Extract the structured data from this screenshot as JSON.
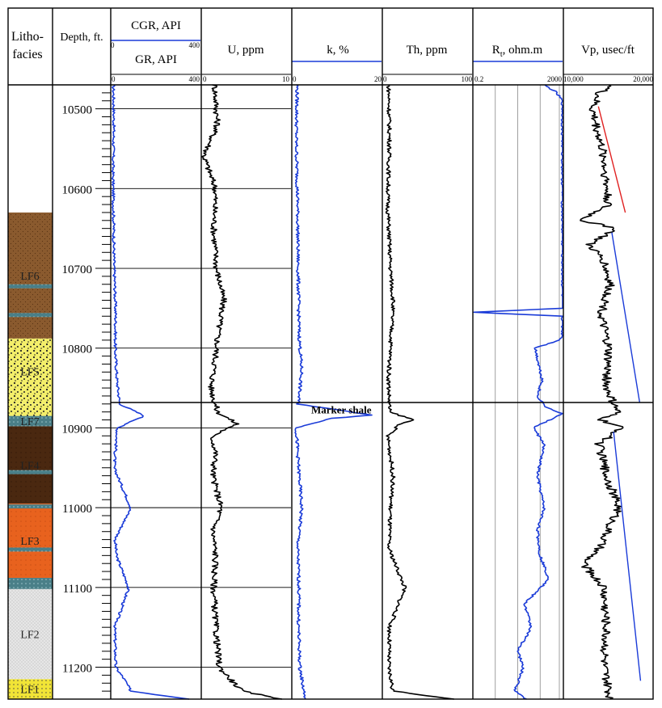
{
  "chart_data": {
    "type": "well-log",
    "depth_range": [
      10470,
      11240
    ],
    "depth_ticks": [
      10500,
      10600,
      10700,
      10800,
      10900,
      11000,
      11100,
      11200
    ],
    "headers": {
      "lithofacies": [
        "Litho-",
        "facies"
      ],
      "depth": "Depth, ft."
    },
    "tracks": [
      {
        "key": "cgr",
        "label": "CGR, API",
        "min_label": "0",
        "max_label": "400",
        "color": "#1a3bd8"
      },
      {
        "key": "gr",
        "label": "GR, API",
        "min_label": "0",
        "max_label": "400",
        "color": "#1a3bd8"
      },
      {
        "key": "u",
        "label": "U, ppm",
        "min_label": "0",
        "max_label": "10",
        "color": "#000000"
      },
      {
        "key": "k",
        "label": "k, %",
        "min_label": "0",
        "max_label": "20",
        "color": "#1a3bd8"
      },
      {
        "key": "th",
        "label": "Th, ppm",
        "min_label": "0",
        "max_label": "100",
        "color": "#000000"
      },
      {
        "key": "rt",
        "label": "Rt, ohm.m",
        "label_main": "R",
        "label_sub": "t",
        "label_rest": ", ohm.m",
        "min_label": "0.2",
        "max_label": "2000",
        "scale": "log",
        "color": "#1a3bd8"
      },
      {
        "key": "vp",
        "label": "Vp, usec/ft",
        "min_label": "10,000",
        "max_label": "20,000",
        "color": "#000000"
      }
    ],
    "lithofacies": [
      {
        "label": "",
        "top": 10470,
        "base": 10630,
        "pattern": "none"
      },
      {
        "label": "LF6",
        "top": 10630,
        "base": 10788,
        "pattern": "brown"
      },
      {
        "label": "LF5",
        "top": 10788,
        "base": 10870,
        "pattern": "sand"
      },
      {
        "label": "LF7",
        "top": 10885,
        "base": 10898,
        "pattern": "teal"
      },
      {
        "label": "LF4",
        "top": 10898,
        "base": 10995,
        "pattern": "darkbrown"
      },
      {
        "label": "LF3",
        "top": 10995,
        "base": 11088,
        "pattern": "orange"
      },
      {
        "label": "LF2",
        "top": 11102,
        "base": 11215,
        "pattern": "gray"
      },
      {
        "label": "LF1",
        "top": 11215,
        "base": 11240,
        "pattern": "yellow"
      }
    ],
    "thin_bands": [
      10722,
      10758,
      10875,
      10955,
      10998,
      11052,
      11094
    ],
    "annotations": [
      {
        "text": "Marker shale",
        "depth": 10886,
        "track": "k"
      }
    ],
    "trend_lines": [
      {
        "track": "vp",
        "color": "#e02020",
        "from": [
          10497,
          13900
        ],
        "to": [
          10630,
          16900
        ]
      },
      {
        "track": "vp",
        "color": "#1a3bd8",
        "from": [
          10655,
          15400
        ],
        "to": [
          10868,
          18500
        ]
      },
      {
        "track": "vp",
        "color": "#1a3bd8",
        "from": [
          10905,
          15600
        ],
        "to": [
          11217,
          18600
        ]
      }
    ],
    "series": {
      "cgr": {
        "depth": [
          10470,
          10520,
          10580,
          10640,
          10700,
          10720,
          10760,
          10800,
          10840,
          10870,
          10885,
          10900,
          10950,
          11000,
          11040,
          11060,
          11100,
          11150,
          11200,
          11215,
          11230,
          11240
        ],
        "value": [
          12,
          14,
          10,
          13,
          15,
          18,
          22,
          20,
          28,
          40,
          150,
          30,
          15,
          90,
          20,
          25,
          80,
          18,
          22,
          60,
          90,
          350
        ]
      },
      "u": {
        "depth": [
          10470,
          10520,
          10560,
          10600,
          10650,
          10700,
          10740,
          10780,
          10820,
          10850,
          10880,
          10895,
          10910,
          10930,
          10960,
          11000,
          11030,
          11060,
          11100,
          11150,
          11200,
          11230,
          11240
        ],
        "value": [
          1.5,
          1.8,
          0.3,
          1.6,
          1.4,
          1.7,
          2.5,
          1.9,
          1.5,
          1.1,
          1.8,
          4.0,
          1.2,
          1.6,
          1.3,
          2.2,
          1.3,
          1.6,
          1.4,
          1.6,
          2.0,
          4.5,
          9.0
        ]
      },
      "k": {
        "depth": [
          10470,
          10540,
          10620,
          10700,
          10780,
          10830,
          10870,
          10884,
          10888,
          10900,
          10950,
          11000,
          11050,
          11100,
          11150,
          11200,
          11240
        ],
        "value": [
          1.2,
          1.0,
          1.3,
          1.4,
          1.6,
          2.2,
          1.4,
          18.0,
          9.0,
          1.0,
          1.5,
          2.2,
          1.3,
          1.6,
          1.5,
          1.8,
          3.0
        ]
      },
      "th": {
        "depth": [
          10470,
          10540,
          10620,
          10700,
          10740,
          10780,
          10840,
          10880,
          10890,
          10895,
          10910,
          10960,
          11000,
          11050,
          11100,
          11150,
          11200,
          11230,
          11240
        ],
        "value": [
          7,
          8,
          6,
          9,
          12,
          10,
          7,
          8,
          35,
          20,
          6,
          12,
          9,
          7,
          25,
          8,
          7,
          12,
          80
        ]
      },
      "rt": {
        "depth": [
          10470,
          10478,
          10490,
          10560,
          10680,
          10750,
          10755,
          10760,
          10785,
          10790,
          10800,
          10840,
          10860,
          10875,
          10882,
          10900,
          10920,
          10960,
          11000,
          11030,
          11060,
          11090,
          11120,
          11150,
          11180,
          11200,
          11230,
          11240
        ],
        "value": [
          300,
          900,
          2000,
          2000,
          2000,
          2000,
          0.2,
          2000,
          2000,
          1500,
          120,
          250,
          150,
          400,
          2000,
          100,
          300,
          150,
          300,
          150,
          200,
          500,
          40,
          80,
          20,
          35,
          15,
          50
        ]
      },
      "vp": {
        "depth": [
          10470,
          10480,
          10500,
          10560,
          10620,
          10640,
          10650,
          10670,
          10690,
          10720,
          10760,
          10800,
          10850,
          10880,
          10890,
          10900,
          10920,
          10960,
          11000,
          11050,
          11070,
          11100,
          11150,
          11200,
          11240
        ],
        "value": [
          15500,
          14000,
          13200,
          14500,
          15000,
          12000,
          16000,
          12800,
          14500,
          15200,
          14200,
          15000,
          14800,
          16000,
          14200,
          16500,
          14000,
          14800,
          16200,
          14000,
          12200,
          14500,
          14800,
          14500,
          15200
        ]
      }
    }
  }
}
